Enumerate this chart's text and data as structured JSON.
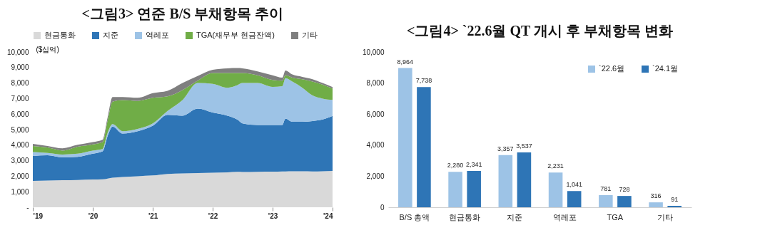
{
  "chart_data": [
    {
      "type": "area",
      "title": "<그림3> 연준 B/S 부채항목 추이",
      "ylabel": "($십억)",
      "stacked": true,
      "legend": "top",
      "grid": false,
      "x": [
        "2019-01",
        "2019-04",
        "2019-07",
        "2019-10",
        "2020-01",
        "2020-03",
        "2020-04",
        "2020-05",
        "2020-07",
        "2020-10",
        "2021-01",
        "2021-04",
        "2021-07",
        "2021-10",
        "2022-01",
        "2022-04",
        "2022-06",
        "2022-07",
        "2022-10",
        "2023-01",
        "2023-03",
        "2023-03-20",
        "2023-05",
        "2023-07",
        "2023-09",
        "2023-11",
        "2024-01"
      ],
      "series": [
        {
          "name": "현금통화",
          "color": "#d9d9d9",
          "values": [
            1700,
            1720,
            1740,
            1760,
            1790,
            1800,
            1850,
            1900,
            1950,
            2000,
            2050,
            2150,
            2180,
            2200,
            2230,
            2250,
            2280,
            2270,
            2280,
            2290,
            2300,
            2310,
            2320,
            2320,
            2310,
            2320,
            2341
          ]
        },
        {
          "name": "지준",
          "color": "#2e75b6",
          "values": [
            1600,
            1630,
            1480,
            1490,
            1660,
            1800,
            2750,
            3300,
            2800,
            2900,
            3200,
            3800,
            3720,
            4150,
            3870,
            3650,
            3357,
            3130,
            3020,
            3010,
            3000,
            3400,
            3180,
            3180,
            3240,
            3330,
            3537
          ]
        },
        {
          "name": "역레포",
          "color": "#9dc3e6",
          "values": [
            250,
            150,
            180,
            200,
            200,
            150,
            200,
            150,
            150,
            150,
            150,
            250,
            1000,
            1650,
            1850,
            1800,
            2231,
            2600,
            2700,
            2450,
            2500,
            2600,
            2600,
            2200,
            1650,
            1350,
            1041
          ]
        },
        {
          "name": "TGA(재무부 현금잔액)",
          "color": "#70ad47",
          "values": [
            400,
            350,
            250,
            450,
            400,
            450,
            800,
            1450,
            2000,
            1800,
            1650,
            950,
            650,
            150,
            700,
            950,
            781,
            650,
            500,
            450,
            350,
            200,
            250,
            550,
            900,
            900,
            728
          ]
        },
        {
          "name": "기타",
          "color": "#7f7f7f",
          "values": [
            130,
            100,
            150,
            120,
            150,
            150,
            200,
            300,
            200,
            200,
            300,
            350,
            450,
            300,
            200,
            300,
            316,
            300,
            250,
            300,
            200,
            300,
            200,
            150,
            150,
            100,
            91
          ]
        }
      ],
      "xlim": [
        "2019-01",
        "2024-01"
      ],
      "xticks": [
        {
          "value": "2019-01",
          "label": "'19"
        },
        {
          "value": "2020-01",
          "label": "'20"
        },
        {
          "value": "2021-01",
          "label": "'21"
        },
        {
          "value": "2022-01",
          "label": "'22"
        },
        {
          "value": "2023-01",
          "label": "'23"
        },
        {
          "value": "2024-01",
          "label": "'24"
        }
      ],
      "ylim": [
        0,
        10000
      ],
      "yticks": [
        {
          "value": 0,
          "label": "-"
        },
        {
          "value": 1000,
          "label": "1,000"
        },
        {
          "value": 2000,
          "label": "2,000"
        },
        {
          "value": 3000,
          "label": "3,000"
        },
        {
          "value": 4000,
          "label": "4,000"
        },
        {
          "value": 5000,
          "label": "5,000"
        },
        {
          "value": 6000,
          "label": "6,000"
        },
        {
          "value": 7000,
          "label": "7,000"
        },
        {
          "value": 8000,
          "label": "8,000"
        },
        {
          "value": 9000,
          "label": "9,000"
        },
        {
          "value": 10000,
          "label": "10,000"
        }
      ]
    },
    {
      "type": "bar",
      "title": "<그림4> `22.6월 QT 개시 후 부채항목 변화",
      "legend": "top right",
      "grid": false,
      "categories": [
        "B/S 총액",
        "현금통화",
        "지준",
        "역레포",
        "TGA",
        "기타"
      ],
      "series": [
        {
          "name": "`22.6월",
          "color": "#9dc3e6",
          "values": [
            8964,
            2280,
            3357,
            2231,
            781,
            316
          ],
          "value_labels": [
            "8,964",
            "2,280",
            "3,357",
            "2,231",
            "781",
            "316"
          ]
        },
        {
          "name": "`24.1월",
          "color": "#2e75b6",
          "values": [
            7738,
            2341,
            3537,
            1041,
            728,
            91
          ],
          "value_labels": [
            "7,738",
            "2,341",
            "3,537",
            "1,041",
            "728",
            "91"
          ]
        }
      ],
      "ylim": [
        0,
        10000
      ],
      "yticks": [
        0,
        {
          "value": 2000,
          "label": "2,000"
        },
        {
          "value": 4000,
          "label": "4,000"
        },
        {
          "value": 6000,
          "label": "6,000"
        },
        {
          "value": 8000,
          "label": "8,000"
        },
        {
          "value": 10000,
          "label": "10,000"
        }
      ]
    }
  ]
}
